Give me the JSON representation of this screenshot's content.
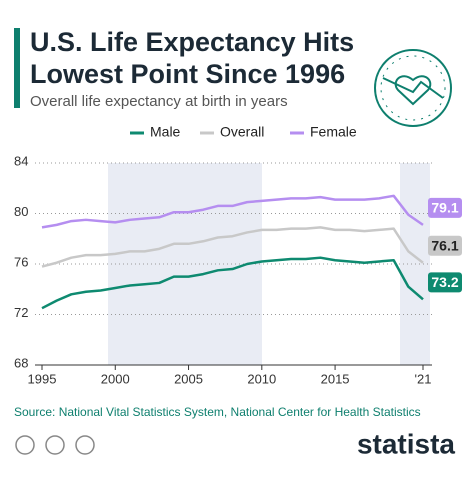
{
  "chart_data": {
    "type": "line",
    "title": [
      "U.S. Life Expectancy Hits",
      "Lowest Point Since 1996"
    ],
    "subtitle": "Overall life expectancy at birth in years",
    "source": "Source: National Vital Statistics System, National Center for Health Statistics",
    "brand": "statista",
    "x": [
      1995,
      1996,
      1997,
      1998,
      1999,
      2000,
      2001,
      2002,
      2003,
      2004,
      2005,
      2006,
      2007,
      2008,
      2009,
      2010,
      2011,
      2012,
      2013,
      2014,
      2015,
      2016,
      2017,
      2018,
      2019,
      2020,
      2021
    ],
    "series": [
      {
        "name": "Male",
        "color": "#0e8a70",
        "values": [
          72.5,
          73.1,
          73.6,
          73.8,
          73.9,
          74.1,
          74.3,
          74.4,
          74.5,
          75.0,
          75.0,
          75.2,
          75.5,
          75.6,
          76.0,
          76.2,
          76.3,
          76.4,
          76.4,
          76.5,
          76.3,
          76.2,
          76.1,
          76.2,
          76.3,
          74.2,
          73.2
        ]
      },
      {
        "name": "Overall",
        "color": "#c8c8c8",
        "values": [
          75.8,
          76.1,
          76.5,
          76.7,
          76.7,
          76.8,
          77.0,
          77.0,
          77.2,
          77.6,
          77.6,
          77.8,
          78.1,
          78.2,
          78.5,
          78.7,
          78.7,
          78.8,
          78.8,
          78.9,
          78.7,
          78.7,
          78.6,
          78.7,
          78.8,
          77.0,
          76.1
        ]
      },
      {
        "name": "Female",
        "color": "#b58ef0",
        "values": [
          78.9,
          79.1,
          79.4,
          79.5,
          79.4,
          79.3,
          79.5,
          79.6,
          79.7,
          80.1,
          80.1,
          80.3,
          80.6,
          80.6,
          80.9,
          81.0,
          81.1,
          81.2,
          81.2,
          81.3,
          81.1,
          81.1,
          81.1,
          81.2,
          81.4,
          79.9,
          79.1
        ]
      }
    ],
    "xlim": [
      1995,
      2021
    ],
    "xticks": [
      1995,
      2000,
      2005,
      2010,
      2015,
      {
        "value": 2021,
        "label": "'21"
      }
    ],
    "ylim": [
      68,
      84
    ],
    "yticks": [
      68,
      72,
      76,
      80,
      84
    ],
    "grid": true
  }
}
